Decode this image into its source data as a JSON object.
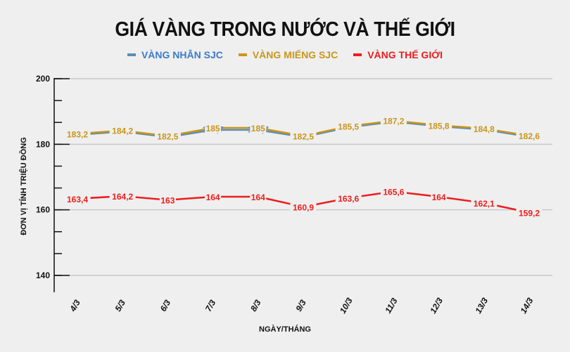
{
  "title": "GIÁ VÀNG TRONG NƯỚC VÀ THẾ GIỚI",
  "legend": [
    {
      "label": "VÀNG NHẪN SJC",
      "color": "#3a7bc8",
      "swatch": "#5b8db8"
    },
    {
      "label": "VÀNG MIẾNG SJC",
      "color": "#c8961a",
      "swatch": "#c8961a"
    },
    {
      "label": "VÀNG THẾ GIỚI",
      "color": "#ee1c1c",
      "swatch": "#ee1c1c"
    }
  ],
  "axis": {
    "ylabel": "ĐƠN VỊ TÍNH TRIỆU ĐỒNG",
    "xlabel": "NGÀY/THÁNG"
  },
  "chart_data": {
    "type": "line",
    "title": "GIÁ VÀNG TRONG NƯỚC VÀ THẾ GIỚI",
    "xlabel": "NGÀY/THÁNG",
    "ylabel": "ĐƠN VỊ TÍNH TRIỆU ĐỒNG",
    "categories": [
      "4/3",
      "5/3",
      "6/3",
      "7/3",
      "8/3",
      "9/3",
      "10/3",
      "11/3",
      "12/3",
      "13/3",
      "14/3"
    ],
    "yticks": [
      140,
      160,
      180,
      200
    ],
    "ylim": [
      136,
      200
    ],
    "grid": true,
    "legend_position": "top",
    "series": [
      {
        "name": "VÀNG NHẪN SJC",
        "color": "#5b8db8",
        "values": [
          183.2,
          184.2,
          182.5,
          184.7,
          184.7,
          182.5,
          185.5,
          187.2,
          185.8,
          184.8,
          182.6
        ],
        "labels": [
          "183,2",
          "184,2",
          "182,5",
          "184,7",
          "184,7",
          "182,5",
          "185,5",
          "187,2",
          "185,8",
          "184,8",
          "182,6"
        ]
      },
      {
        "name": "VÀNG MIẾNG SJC",
        "color": "#c8961a",
        "values": [
          183.2,
          184.2,
          182.5,
          185,
          185,
          182.5,
          185.5,
          187.2,
          185.8,
          184.8,
          182.6
        ],
        "labels": [
          "183,2",
          "184,2",
          "182,5",
          "185",
          "185",
          "182,5",
          "185,5",
          "187,2",
          "185,8",
          "184,8",
          "182,6"
        ]
      },
      {
        "name": "VÀNG THẾ GIỚI",
        "color": "#ee1c1c",
        "values": [
          163.4,
          164.2,
          163,
          164,
          164,
          160.9,
          163.6,
          165.6,
          164,
          162.1,
          159.2
        ],
        "labels": [
          "163,4",
          "164,2",
          "163",
          "164",
          "164",
          "160,9",
          "163,6",
          "165,6",
          "164",
          "162,1",
          "159,2"
        ]
      }
    ]
  }
}
